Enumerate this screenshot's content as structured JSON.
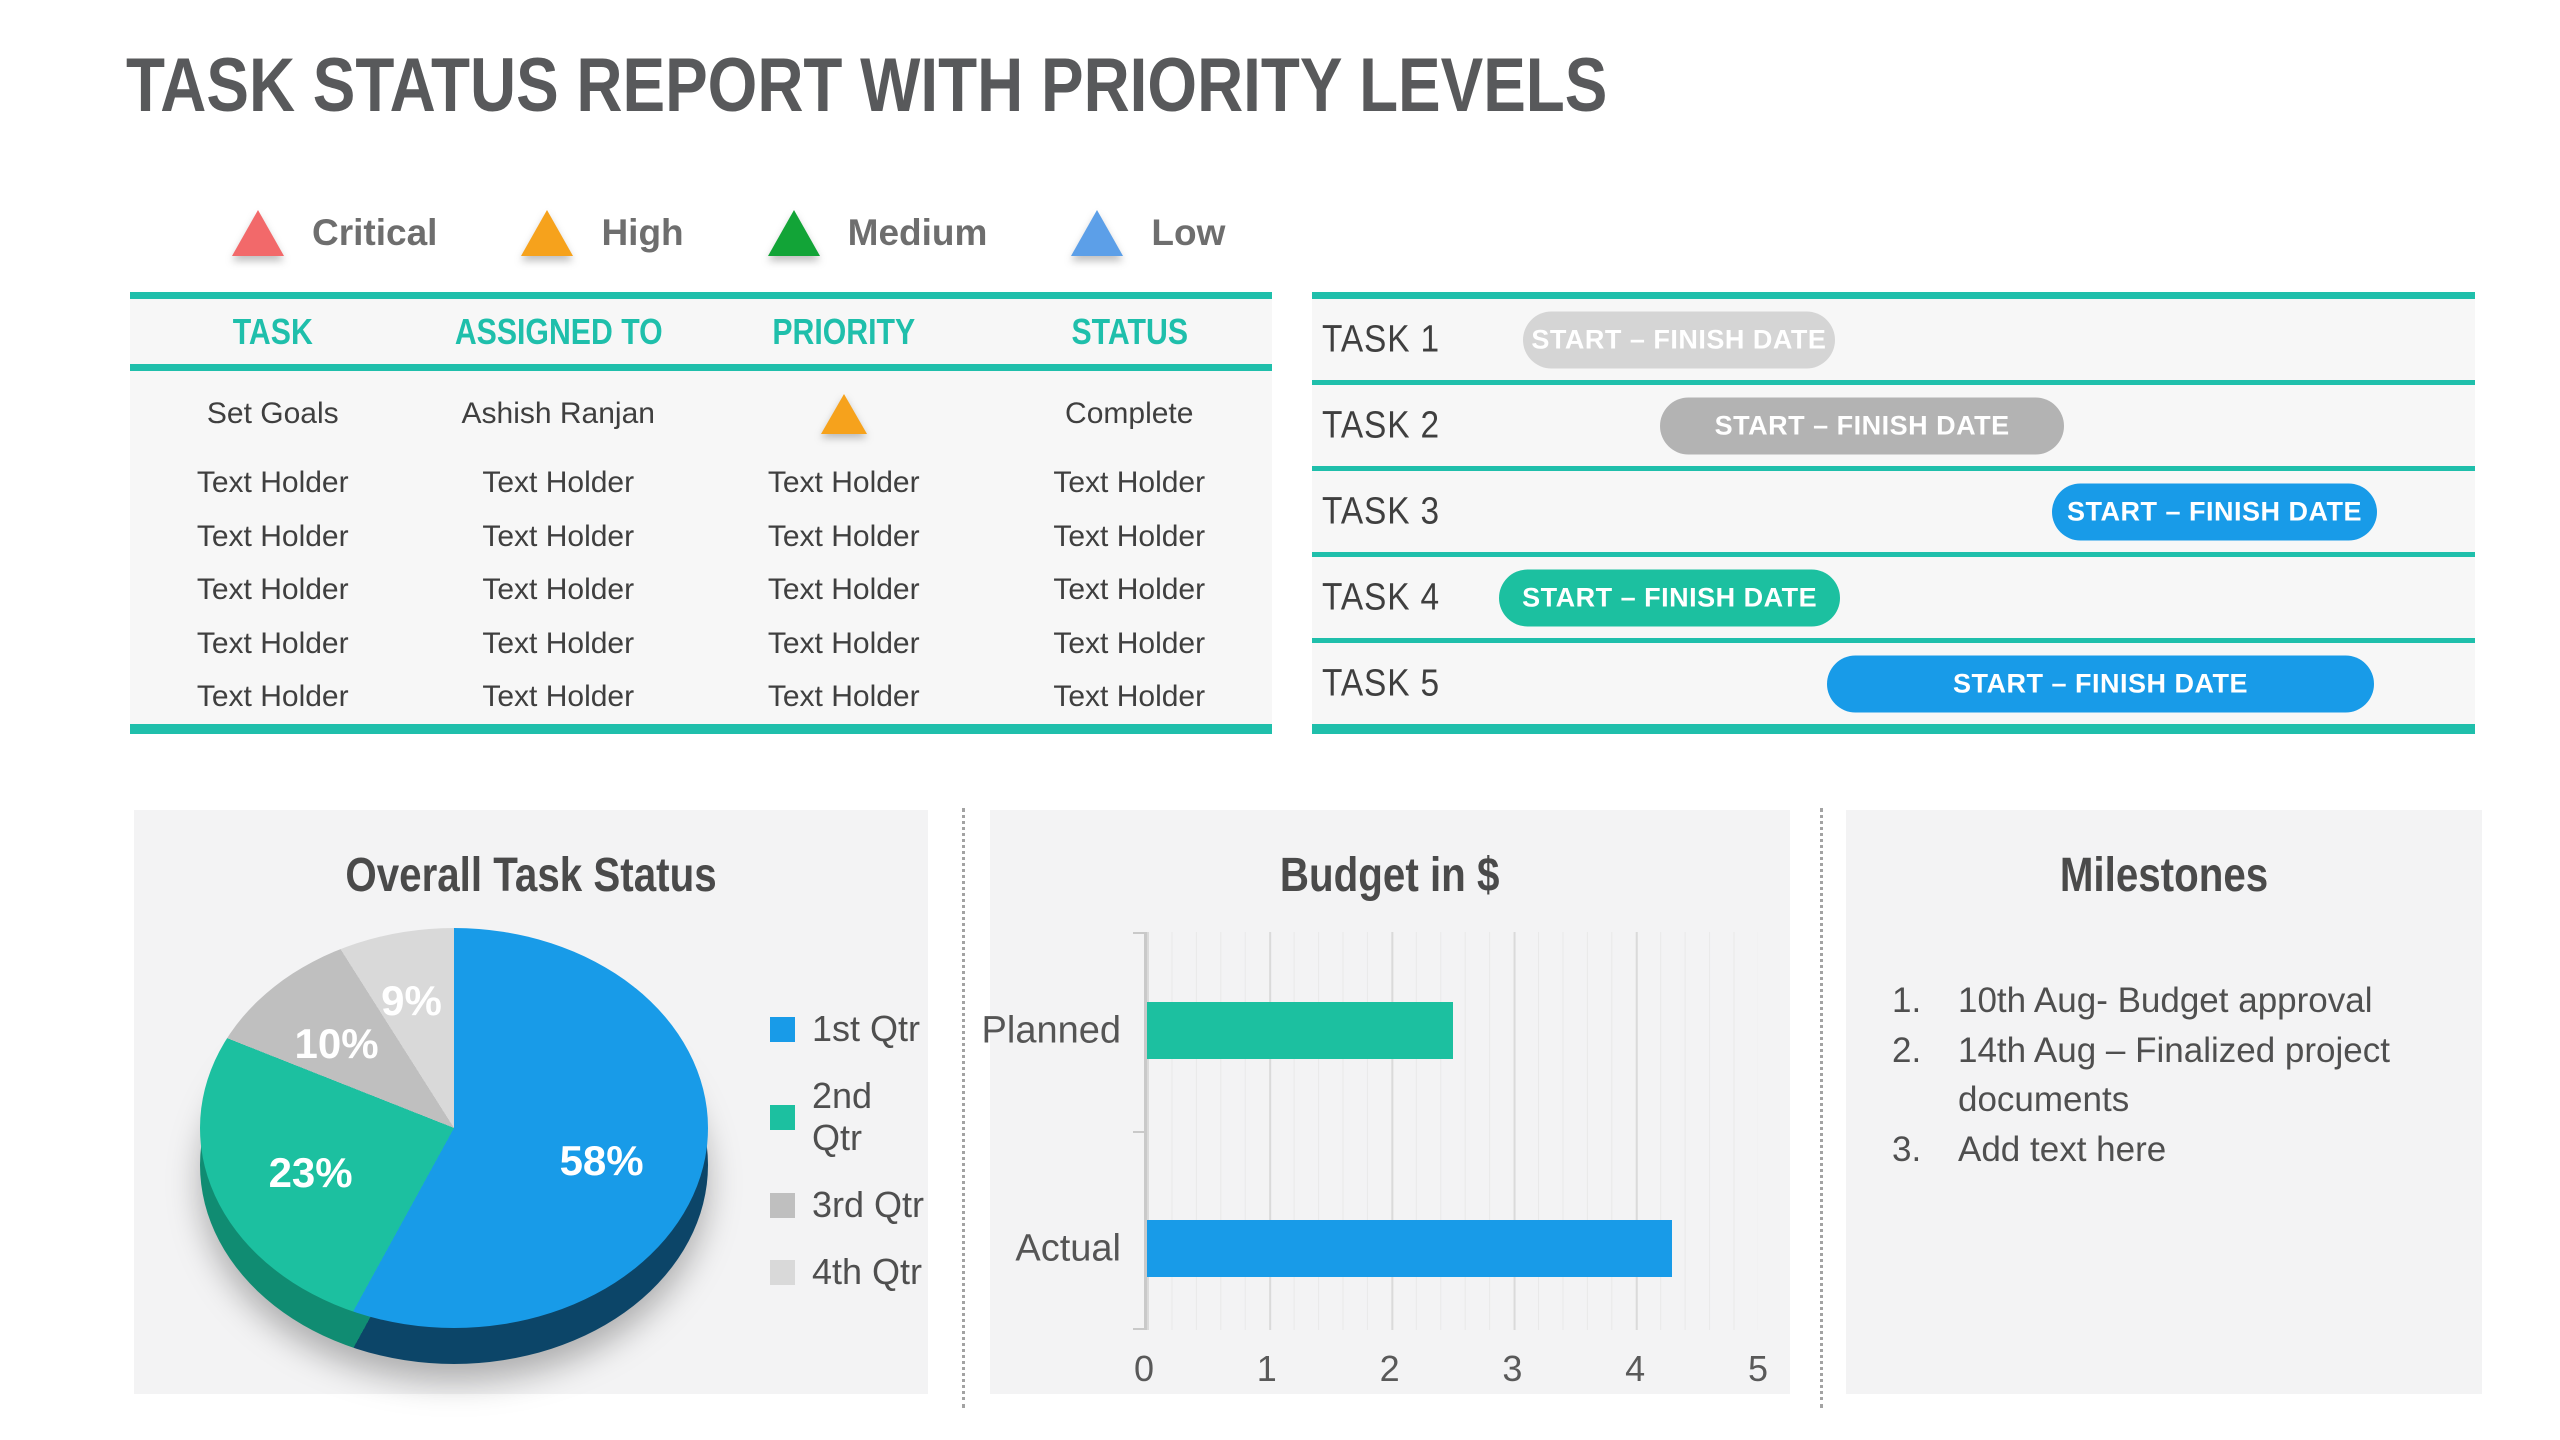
{
  "title": "TASK STATUS REPORT WITH PRIORITY LEVELS",
  "priority_legend": [
    {
      "label": "Critical",
      "color": "#F2696A"
    },
    {
      "label": "High",
      "color": "#F6A21C"
    },
    {
      "label": "Medium",
      "color": "#12A437"
    },
    {
      "label": "Low",
      "color": "#5C9FE8"
    }
  ],
  "task_table": {
    "headers": [
      "TASK",
      "ASSIGNED TO",
      "PRIORITY",
      "STATUS"
    ],
    "rows": [
      {
        "cells": [
          "Set Goals",
          "Ashish Ranjan",
          "",
          "Complete"
        ],
        "priority_icon": "high-triangle",
        "priority_color": "#F6A21C"
      },
      {
        "cells": [
          "Text Holder",
          "Text Holder",
          "Text Holder",
          "Text Holder"
        ]
      },
      {
        "cells": [
          "Text Holder",
          "Text Holder",
          "Text Holder",
          "Text Holder"
        ]
      },
      {
        "cells": [
          "Text Holder",
          "Text Holder",
          "Text Holder",
          "Text Holder"
        ]
      },
      {
        "cells": [
          "Text Holder",
          "Text Holder",
          "Text Holder",
          "Text Holder"
        ]
      },
      {
        "cells": [
          "Text Holder",
          "Text Holder",
          "Text Holder",
          "Text Holder"
        ]
      }
    ]
  },
  "gantt": {
    "tasks": [
      {
        "label": "TASK 1",
        "bar_text": "START – FINISH DATE",
        "color": "#D5D5D5",
        "start_pct": 18.1,
        "width_pct": 26.9
      },
      {
        "label": "TASK 2",
        "bar_text": "START – FINISH DATE",
        "color": "#B3B3B3",
        "start_pct": 29.9,
        "width_pct": 34.8
      },
      {
        "label": "TASK 3",
        "bar_text": "START – FINISH DATE",
        "color": "#189BE8",
        "start_pct": 63.6,
        "width_pct": 28.0
      },
      {
        "label": "TASK 4",
        "bar_text": "START – FINISH DATE",
        "color": "#1CC0A0",
        "start_pct": 16.1,
        "width_pct": 29.3
      },
      {
        "label": "TASK 5",
        "bar_text": "START – FINISH DATE",
        "color": "#189BE8",
        "start_pct": 44.3,
        "width_pct": 47.0
      }
    ]
  },
  "chart_data": [
    {
      "type": "pie",
      "title": "Overall Task Status",
      "style": "3d",
      "legend_position": "right",
      "segments": [
        {
          "name": "1st Qtr",
          "value_pct": 58,
          "color": "#189BE8",
          "label": "58%"
        },
        {
          "name": "2nd Qtr",
          "value_pct": 23,
          "color": "#1CC0A0",
          "label": "23%"
        },
        {
          "name": "3rd Qtr",
          "value_pct": 10,
          "color": "#BFBFBF",
          "label": "10%"
        },
        {
          "name": "4th Qtr",
          "value_pct": 9,
          "color": "#D9D9D9",
          "label": "9%"
        }
      ]
    },
    {
      "type": "bar",
      "title": "Budget in $",
      "orientation": "horizontal",
      "categories": [
        "Planned",
        "Actual"
      ],
      "values": [
        2.5,
        4.3
      ],
      "colors": [
        "#1CC0A0",
        "#189BE8"
      ],
      "xlim": [
        0,
        5
      ],
      "x_ticks": [
        "0",
        "1",
        "2",
        "3",
        "4",
        "5"
      ],
      "grid": "on"
    }
  ],
  "milestones": {
    "title": "Milestones",
    "items": [
      "10th Aug- Budget approval",
      "14th Aug – Finalized project documents",
      "Add text here"
    ]
  }
}
